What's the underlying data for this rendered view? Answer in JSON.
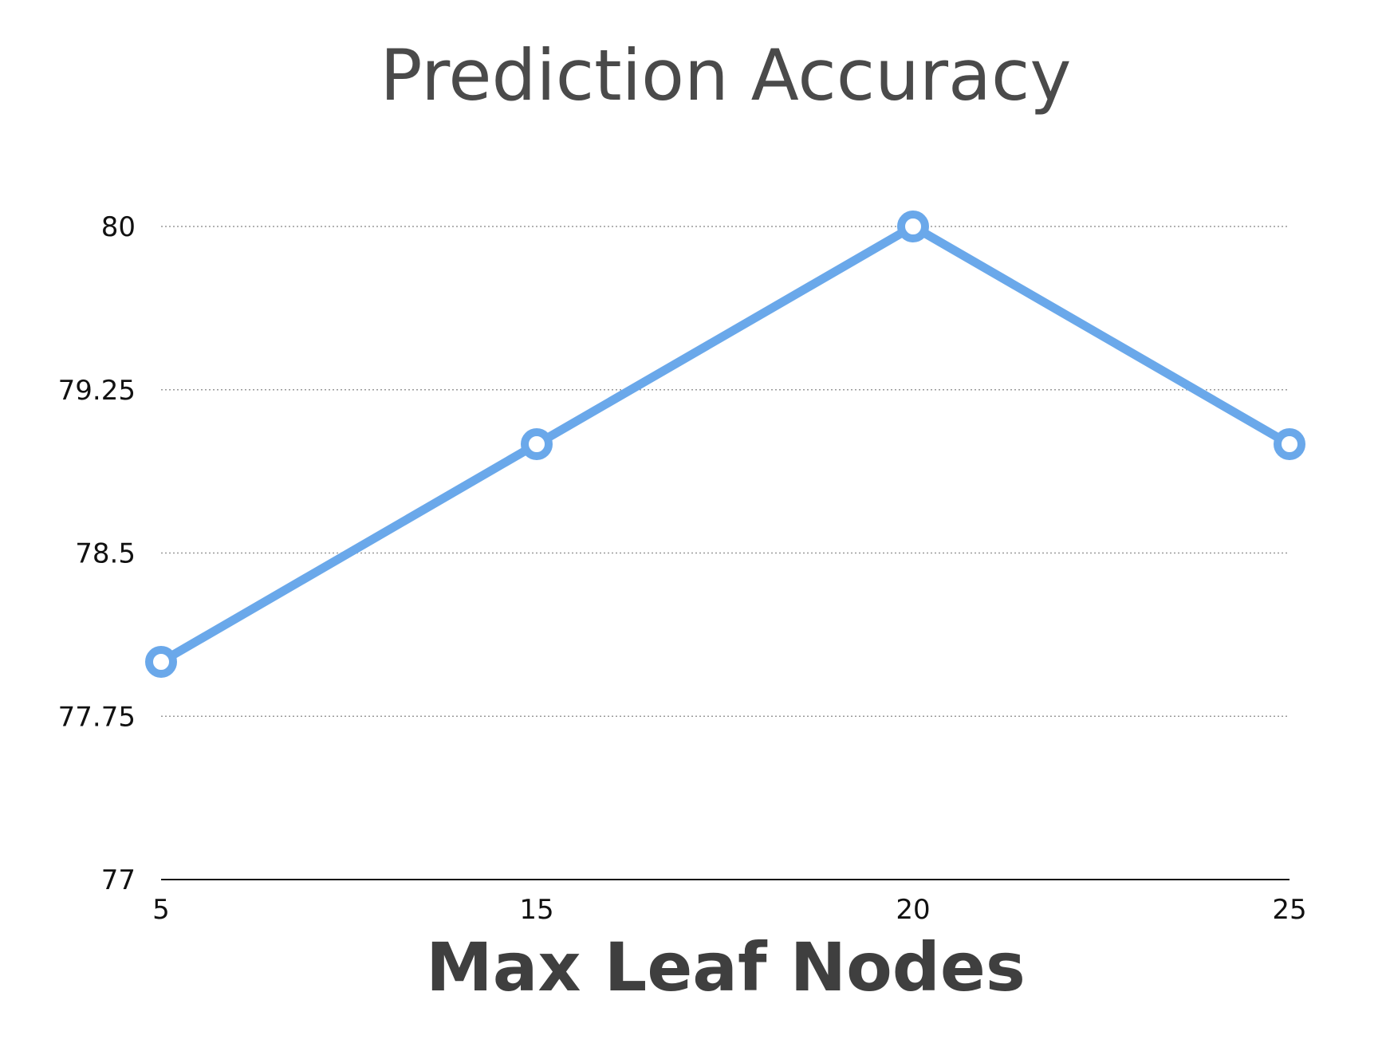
{
  "chart_data": {
    "type": "line",
    "title": "Prediction Accuracy",
    "xlabel": "Max Leaf Nodes",
    "ylabel": "",
    "categories": [
      "5",
      "15",
      "20",
      "25"
    ],
    "series": [
      {
        "values": [
          78,
          79,
          80,
          79
        ]
      }
    ],
    "yticks": [
      "77",
      "77.75",
      "78.5",
      "79.25",
      "80"
    ],
    "ylim": [
      77,
      80
    ],
    "grid": true,
    "legend": "none",
    "colors": {
      "line": "#6aa8ea",
      "grid": "#9a9a9a",
      "axis": "#111111"
    }
  }
}
